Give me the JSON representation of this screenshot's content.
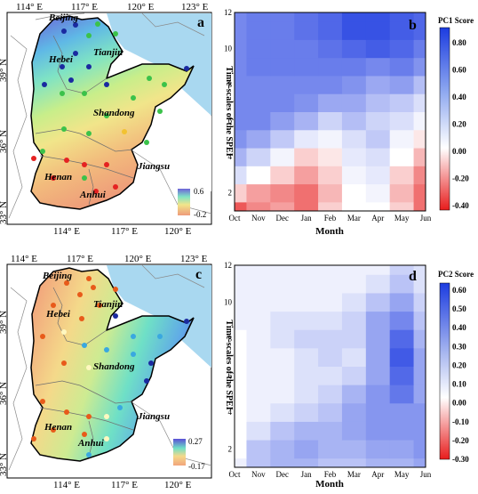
{
  "panels": {
    "a": {
      "letter": "a",
      "x_ticks": [
        "114° E",
        "117° E",
        "120° E",
        "123° E"
      ],
      "y_ticks": [
        "39° N",
        "36° N",
        "33° N"
      ],
      "places": [
        "Beijing",
        "Tianjin",
        "Hebei",
        "Shandong",
        "Henan",
        "Jiangsu",
        "Anhui"
      ],
      "colorbar": {
        "max": "0.6",
        "min": "-0.2"
      }
    },
    "c": {
      "letter": "c",
      "x_ticks": [
        "114° E",
        "117° E",
        "120° E",
        "123° E"
      ],
      "y_ticks": [
        "39° N",
        "36° N",
        "33° N"
      ],
      "places": [
        "Beijing",
        "Tianjin",
        "Hebei",
        "Shandong",
        "Henan",
        "Jiangsu",
        "Anhui"
      ],
      "colorbar": {
        "max": "0.27",
        "min": "-0.17"
      }
    },
    "b": {
      "letter": "b",
      "colorbar_title": "PC1 Score",
      "colorbar_ticks": [
        "0.80",
        "0.60",
        "0.40",
        "0.20",
        "0.00",
        "-0.20",
        "-0.40"
      ]
    },
    "d": {
      "letter": "d",
      "colorbar_title": "PC2 Score",
      "colorbar_ticks": [
        "0.60",
        "0.50",
        "0.40",
        "0.30",
        "0.20",
        "0.10",
        "0.00",
        "-0.10",
        "-0.20",
        "-0.30"
      ]
    }
  },
  "chart_data": [
    {
      "type": "heatmap",
      "panel": "b",
      "xlabel": "Month",
      "ylabel": "Time-scales of the SPEI",
      "x_categories": [
        "Oct",
        "Nov",
        "Dec",
        "Jan",
        "Feb",
        "Mar",
        "Apr",
        "May",
        "Jun"
      ],
      "y_ticks": [
        2,
        4,
        6,
        8,
        10,
        12
      ],
      "ylim": [
        1,
        12
      ],
      "colorbar_range": [
        -0.45,
        0.9
      ],
      "grid_rows_scale_1_to_12": [
        [
          -0.35,
          -0.25,
          -0.2,
          -0.3,
          -0.1,
          0.0,
          0.0,
          -0.1,
          -0.3
        ],
        [
          -0.1,
          -0.2,
          -0.25,
          -0.3,
          -0.15,
          0.0,
          0.05,
          -0.15,
          -0.3
        ],
        [
          0.15,
          0.0,
          -0.1,
          -0.2,
          -0.1,
          0.05,
          0.1,
          -0.1,
          -0.25
        ],
        [
          0.35,
          0.2,
          0.05,
          -0.1,
          -0.05,
          0.1,
          0.15,
          0.0,
          -0.15
        ],
        [
          0.5,
          0.4,
          0.25,
          0.1,
          0.05,
          0.15,
          0.25,
          0.05,
          -0.05
        ],
        [
          0.55,
          0.55,
          0.45,
          0.35,
          0.2,
          0.3,
          0.2,
          0.15,
          0.05
        ],
        [
          0.55,
          0.55,
          0.55,
          0.5,
          0.4,
          0.4,
          0.3,
          0.25,
          0.15
        ],
        [
          0.55,
          0.55,
          0.55,
          0.55,
          0.55,
          0.5,
          0.4,
          0.45,
          0.3
        ],
        [
          0.55,
          0.6,
          0.6,
          0.6,
          0.6,
          0.6,
          0.55,
          0.6,
          0.5
        ],
        [
          0.55,
          0.6,
          0.6,
          0.6,
          0.65,
          0.7,
          0.75,
          0.7,
          0.6
        ],
        [
          0.55,
          0.6,
          0.6,
          0.65,
          0.7,
          0.8,
          0.8,
          0.75,
          0.7
        ],
        [
          0.55,
          0.6,
          0.6,
          0.65,
          0.7,
          0.8,
          0.8,
          0.75,
          0.7
        ]
      ]
    },
    {
      "type": "heatmap",
      "panel": "d",
      "xlabel": "Month",
      "ylabel": "Time-scales of the SPEI",
      "x_categories": [
        "Oct",
        "Nov",
        "Dec",
        "Jan",
        "Feb",
        "Mar",
        "Apr",
        "May",
        "Jun"
      ],
      "y_ticks": [
        2,
        4,
        6,
        8,
        10,
        12
      ],
      "ylim": [
        1,
        12
      ],
      "colorbar_range": [
        -0.33,
        0.65
      ],
      "grid_rows_scale_1_to_12": [
        [
          0.05,
          0.2,
          0.25,
          0.25,
          0.2,
          0.2,
          0.25,
          0.25,
          0.3
        ],
        [
          0.0,
          0.2,
          0.25,
          0.3,
          0.25,
          0.25,
          0.3,
          0.3,
          0.35
        ],
        [
          0.0,
          0.1,
          0.2,
          0.25,
          0.25,
          0.3,
          0.35,
          0.35,
          0.35
        ],
        [
          0.0,
          0.05,
          0.1,
          0.15,
          0.2,
          0.3,
          0.35,
          0.35,
          0.35
        ],
        [
          0.0,
          0.05,
          0.05,
          0.1,
          0.15,
          0.25,
          0.35,
          0.45,
          0.3
        ],
        [
          0.0,
          0.05,
          0.05,
          0.1,
          0.1,
          0.15,
          0.3,
          0.5,
          0.3
        ],
        [
          0.0,
          0.05,
          0.05,
          0.1,
          0.15,
          0.1,
          0.3,
          0.55,
          0.3
        ],
        [
          0.0,
          0.05,
          0.1,
          0.15,
          0.15,
          0.15,
          0.3,
          0.5,
          0.25
        ],
        [
          0.05,
          0.05,
          0.1,
          0.1,
          0.1,
          0.15,
          0.3,
          0.4,
          0.2
        ],
        [
          0.05,
          0.05,
          0.05,
          0.05,
          0.05,
          0.1,
          0.2,
          0.3,
          0.15
        ],
        [
          0.05,
          0.05,
          0.05,
          0.05,
          0.05,
          0.05,
          0.1,
          0.2,
          0.1
        ],
        [
          0.05,
          0.05,
          0.05,
          0.05,
          0.05,
          0.05,
          0.05,
          0.15,
          0.1
        ]
      ]
    }
  ]
}
